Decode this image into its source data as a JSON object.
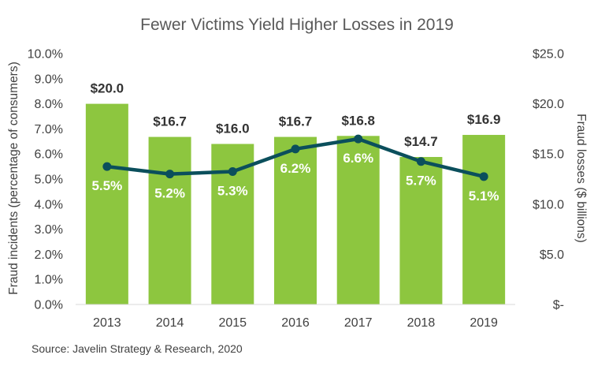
{
  "chart_data": {
    "type": "bar",
    "title": "Fewer Victims Yield Higher Losses in 2019",
    "categories": [
      "2013",
      "2014",
      "2015",
      "2016",
      "2017",
      "2018",
      "2019"
    ],
    "bar_series": {
      "axis": "right",
      "values": [
        20.0,
        16.7,
        16.0,
        16.7,
        16.8,
        14.7,
        16.9
      ],
      "labels": [
        "$20.0",
        "$16.7",
        "$16.0",
        "$16.7",
        "$16.8",
        "$14.7",
        "$16.9"
      ],
      "color": "#8dc63f"
    },
    "line_series": {
      "axis": "left",
      "type": "line",
      "values": [
        5.5,
        5.2,
        5.3,
        6.2,
        6.6,
        5.7,
        5.1
      ],
      "labels": [
        "5.5%",
        "5.2%",
        "5.3%",
        "6.2%",
        "6.6%",
        "5.7%",
        "5.1%"
      ],
      "color": "#0b4f5c"
    },
    "ylabel_left": "Fraud incidents (percentage of consumers)",
    "ylabel_right": "Fraud losses ($ billions)",
    "ylim_left": [
      0,
      10
    ],
    "ylim_right": [
      0,
      25
    ],
    "yticks_left": [
      "0.0%",
      "1.0%",
      "2.0%",
      "3.0%",
      "4.0%",
      "5.0%",
      "6.0%",
      "7.0%",
      "8.0%",
      "9.0%",
      "10.0%"
    ],
    "yticks_right": [
      "$-",
      "$5.0",
      "$10.0",
      "$15.0",
      "$20.0",
      "$25.0"
    ],
    "grid": false,
    "legend": "none"
  },
  "source": "Source: Javelin Strategy & Research, 2020"
}
